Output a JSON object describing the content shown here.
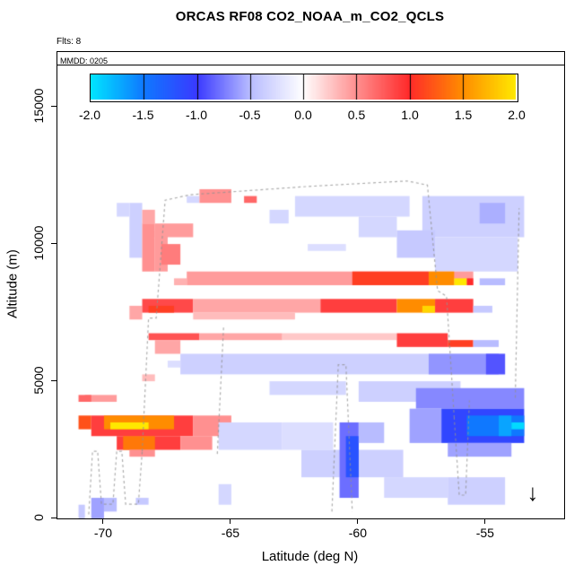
{
  "title": "ORCAS RF08 CO2_NOAA_m_CO2_QCLS",
  "annotations": {
    "flights": "Flts: 8",
    "legend": "MMDD: 0205",
    "arrow_glyph": "↓"
  },
  "colors": {
    "track": "rgba(145,145,145,0.75)",
    "axis": "#000000",
    "background": "#ffffff"
  },
  "chart_data": {
    "type": "heatmap",
    "title": "ORCAS RF08 CO2_NOAA_m_CO2_QCLS",
    "xlabel": "Latitude (deg N)",
    "ylabel": "Altitude (m)",
    "xlim": [
      -71.83,
      -51.93
    ],
    "ylim": [
      0,
      17000
    ],
    "x_ticks": [
      -70,
      -65,
      -60,
      -55
    ],
    "x_tick_labels": [
      "-70",
      "-65",
      "-60",
      "-55"
    ],
    "y_ticks": [
      0,
      5000,
      10000,
      15000
    ],
    "y_tick_labels": [
      "0",
      "5000",
      "10000",
      "15000"
    ],
    "grid": false,
    "colorbar": {
      "min": -2,
      "max": 2,
      "ticks": [
        -2.0,
        -1.5,
        -1.0,
        -0.5,
        0.0,
        0.5,
        1.0,
        1.5,
        2.0
      ],
      "tick_labels": [
        "-2.0",
        "-1.5",
        "-1.0",
        "-0.5",
        "0.0",
        "0.5",
        "1.0",
        "1.5",
        "2.0"
      ],
      "stops": [
        [
          -2.0,
          "#00E5FF"
        ],
        [
          -1.5,
          "#0F78FF"
        ],
        [
          -1.0,
          "#3A3AFF"
        ],
        [
          -0.5,
          "#B8BCFF"
        ],
        [
          0.0,
          "#FFFFFF"
        ],
        [
          0.5,
          "#FF9090"
        ],
        [
          1.0,
          "#FF2A2A"
        ],
        [
          1.5,
          "#FF8C00"
        ],
        [
          2.0,
          "#FFE800"
        ]
      ]
    },
    "cell_size": {
      "lat": 0.25,
      "alt": 250
    },
    "cells": [
      [
        -69.1,
        -68.6,
        9500,
        11600,
        -0.35
      ],
      [
        -69.45,
        -69.1,
        10900,
        11600,
        -0.3
      ],
      [
        -68.6,
        -68.0,
        8900,
        10750,
        0.5
      ],
      [
        -68.45,
        -68.05,
        10750,
        11300,
        0.4
      ],
      [
        -68.1,
        -67.4,
        9000,
        10450,
        0.45
      ],
      [
        -68.0,
        -66.6,
        10300,
        10650,
        0.45
      ],
      [
        -67.7,
        -67.1,
        9300,
        9950,
        0.6
      ],
      [
        -66.8,
        -66.3,
        11450,
        11800,
        -0.3
      ],
      [
        -66.2,
        -64.9,
        11550,
        11900,
        0.5
      ],
      [
        -64.6,
        -64.1,
        11550,
        11850,
        0.7
      ],
      [
        -62.6,
        -57.9,
        11050,
        11700,
        -0.3
      ],
      [
        -63.6,
        -62.8,
        10650,
        11250,
        -0.3
      ],
      [
        -60.1,
        -58.4,
        10350,
        11050,
        -0.3
      ],
      [
        -57.6,
        -53.6,
        10300,
        11750,
        -0.35
      ],
      [
        -55.3,
        -54.2,
        10650,
        11450,
        -0.55
      ],
      [
        -58.4,
        -57.1,
        9400,
        10450,
        -0.4
      ],
      [
        -56.9,
        -53.8,
        8950,
        10300,
        -0.3
      ],
      [
        -62.0,
        -60.5,
        9700,
        10100,
        -0.25
      ],
      [
        -67.3,
        -66.8,
        8500,
        8800,
        0.35
      ],
      [
        -66.8,
        -55.5,
        8450,
        8900,
        0.45
      ],
      [
        -60.2,
        -57.3,
        8450,
        8900,
        1.1
      ],
      [
        -57.3,
        -56.3,
        8500,
        8900,
        1.5
      ],
      [
        -56.3,
        -55.7,
        8550,
        8870,
        2.0
      ],
      [
        -55.7,
        -55.4,
        8550,
        8850,
        1.0
      ],
      [
        -55.2,
        -54.2,
        8400,
        8800,
        -0.5
      ],
      [
        -69.0,
        -68.5,
        7300,
        7650,
        0.4
      ],
      [
        -68.6,
        -66.6,
        7450,
        7950,
        0.85
      ],
      [
        -68.2,
        -67.2,
        7500,
        7870,
        1.1
      ],
      [
        -66.6,
        -61.5,
        7450,
        7900,
        0.4
      ],
      [
        -61.5,
        -58.6,
        7450,
        7950,
        0.9
      ],
      [
        -58.6,
        -56.9,
        7450,
        7950,
        1.5
      ],
      [
        -57.6,
        -57.1,
        7550,
        7850,
        1.9
      ],
      [
        -56.9,
        -55.6,
        7450,
        7900,
        0.9
      ],
      [
        -55.5,
        -54.8,
        7400,
        7800,
        -0.4
      ],
      [
        -66.5,
        -62.4,
        7200,
        7460,
        0.3
      ],
      [
        -68.3,
        -66.2,
        6400,
        6800,
        0.8
      ],
      [
        -66.2,
        -63.0,
        6400,
        6750,
        0.4
      ],
      [
        -63.0,
        -58.5,
        6450,
        6700,
        0.25
      ],
      [
        -58.4,
        -56.4,
        6300,
        6650,
        0.9
      ],
      [
        -56.4,
        -55.4,
        6200,
        6550,
        1.1
      ],
      [
        -55.4,
        -54.6,
        6150,
        6500,
        -0.5
      ],
      [
        -68.1,
        -66.9,
        6100,
        6400,
        0.4
      ],
      [
        -67.0,
        -54.2,
        5250,
        6000,
        -0.35
      ],
      [
        -67.6,
        -67.0,
        5400,
        5800,
        -0.25
      ],
      [
        -57.3,
        -54.4,
        5300,
        5980,
        -0.65
      ],
      [
        -55.1,
        -54.2,
        5300,
        5950,
        -0.9
      ],
      [
        -68.6,
        -67.9,
        5000,
        5350,
        0.3
      ],
      [
        -63.6,
        -60.4,
        4450,
        4980,
        -0.3
      ],
      [
        -59.9,
        -56.1,
        4350,
        4980,
        -0.35
      ],
      [
        -70.7,
        -69.6,
        4150,
        4520,
        0.45
      ],
      [
        -70.95,
        -70.55,
        4250,
        4500,
        0.7
      ],
      [
        -57.7,
        -53.4,
        3950,
        4660,
        -0.7
      ],
      [
        -57.9,
        -56.8,
        2700,
        3950,
        -0.6
      ],
      [
        -56.8,
        -53.4,
        2650,
        4000,
        -1.1
      ],
      [
        -55.7,
        -53.4,
        2950,
        3870,
        -1.5
      ],
      [
        -54.5,
        -53.9,
        3050,
        3750,
        -1.7
      ],
      [
        -53.9,
        -53.4,
        3150,
        3620,
        -1.95
      ],
      [
        -56.6,
        -54.0,
        2280,
        2700,
        -0.6
      ],
      [
        -70.95,
        -70.4,
        3350,
        3660,
        1.2
      ],
      [
        -70.4,
        -66.4,
        3050,
        3820,
        0.9
      ],
      [
        -70.1,
        -67.2,
        3200,
        3660,
        1.5
      ],
      [
        -69.75,
        -68.3,
        3250,
        3590,
        2.0
      ],
      [
        -66.4,
        -65.1,
        3100,
        3700,
        0.5
      ],
      [
        -70.0,
        -69.3,
        2950,
        3120,
        0.7
      ],
      [
        -69.6,
        -66.9,
        2520,
        2960,
        0.9
      ],
      [
        -69.15,
        -68.0,
        2580,
        2890,
        1.4
      ],
      [
        -66.9,
        -65.8,
        2550,
        2900,
        0.5
      ],
      [
        -68.9,
        -68.1,
        2200,
        2530,
        0.5
      ],
      [
        -65.4,
        -63.0,
        2400,
        3620,
        -0.3
      ],
      [
        -63.0,
        -61.0,
        2500,
        3520,
        -0.25
      ],
      [
        -62.3,
        -58.2,
        1500,
        2420,
        -0.35
      ],
      [
        -60.75,
        -59.9,
        800,
        3400,
        -0.8
      ],
      [
        -60.55,
        -60.1,
        1400,
        2950,
        -1.2
      ],
      [
        -59.9,
        -58.9,
        2700,
        3530,
        -0.5
      ],
      [
        -58.9,
        -56.6,
        700,
        1620,
        -0.3
      ],
      [
        -56.4,
        -54.3,
        600,
        1520,
        -0.35
      ],
      [
        -65.6,
        -64.9,
        600,
        1320,
        -0.3
      ],
      [
        -70.55,
        -70.1,
        80,
        720,
        -0.6
      ],
      [
        -69.95,
        -69.5,
        350,
        720,
        -0.5
      ],
      [
        -68.65,
        -68.2,
        400,
        720,
        -0.4
      ],
      [
        -71.05,
        -70.7,
        60,
        420,
        -0.4
      ]
    ],
    "tracks": [
      [
        [
          -70.6,
          150
        ],
        [
          -70.45,
          2450
        ],
        [
          -70.25,
          2450
        ],
        [
          -70.1,
          520
        ],
        [
          -69.65,
          520
        ],
        [
          -69.5,
          2450
        ],
        [
          -69.3,
          2450
        ],
        [
          -69.15,
          520
        ],
        [
          -68.65,
          520
        ],
        [
          -68.5,
          2450
        ]
      ],
      [
        [
          -68.5,
          2450
        ],
        [
          -68.25,
          7300
        ],
        [
          -67.95,
          7300
        ],
        [
          -67.6,
          11600
        ],
        [
          -66.6,
          11800
        ],
        [
          -62.0,
          12100
        ],
        [
          -58.1,
          12300
        ],
        [
          -57.3,
          12150
        ],
        [
          -56.9,
          8300
        ],
        [
          -56.55,
          8100
        ],
        [
          -56.25,
          3700
        ]
      ],
      [
        [
          -65.55,
          2350
        ],
        [
          -65.3,
          7050
        ]
      ],
      [
        [
          -61.05,
          250
        ],
        [
          -60.8,
          5600
        ],
        [
          -60.5,
          5600
        ],
        [
          -60.25,
          250
        ]
      ],
      [
        [
          -56.25,
          3700
        ],
        [
          -56.05,
          850
        ],
        [
          -55.8,
          850
        ],
        [
          -55.65,
          4300
        ]
      ],
      [
        [
          -53.85,
          4400
        ],
        [
          -53.7,
          11300
        ]
      ]
    ],
    "arrow": {
      "lat": -53.15,
      "alt": 900
    }
  }
}
